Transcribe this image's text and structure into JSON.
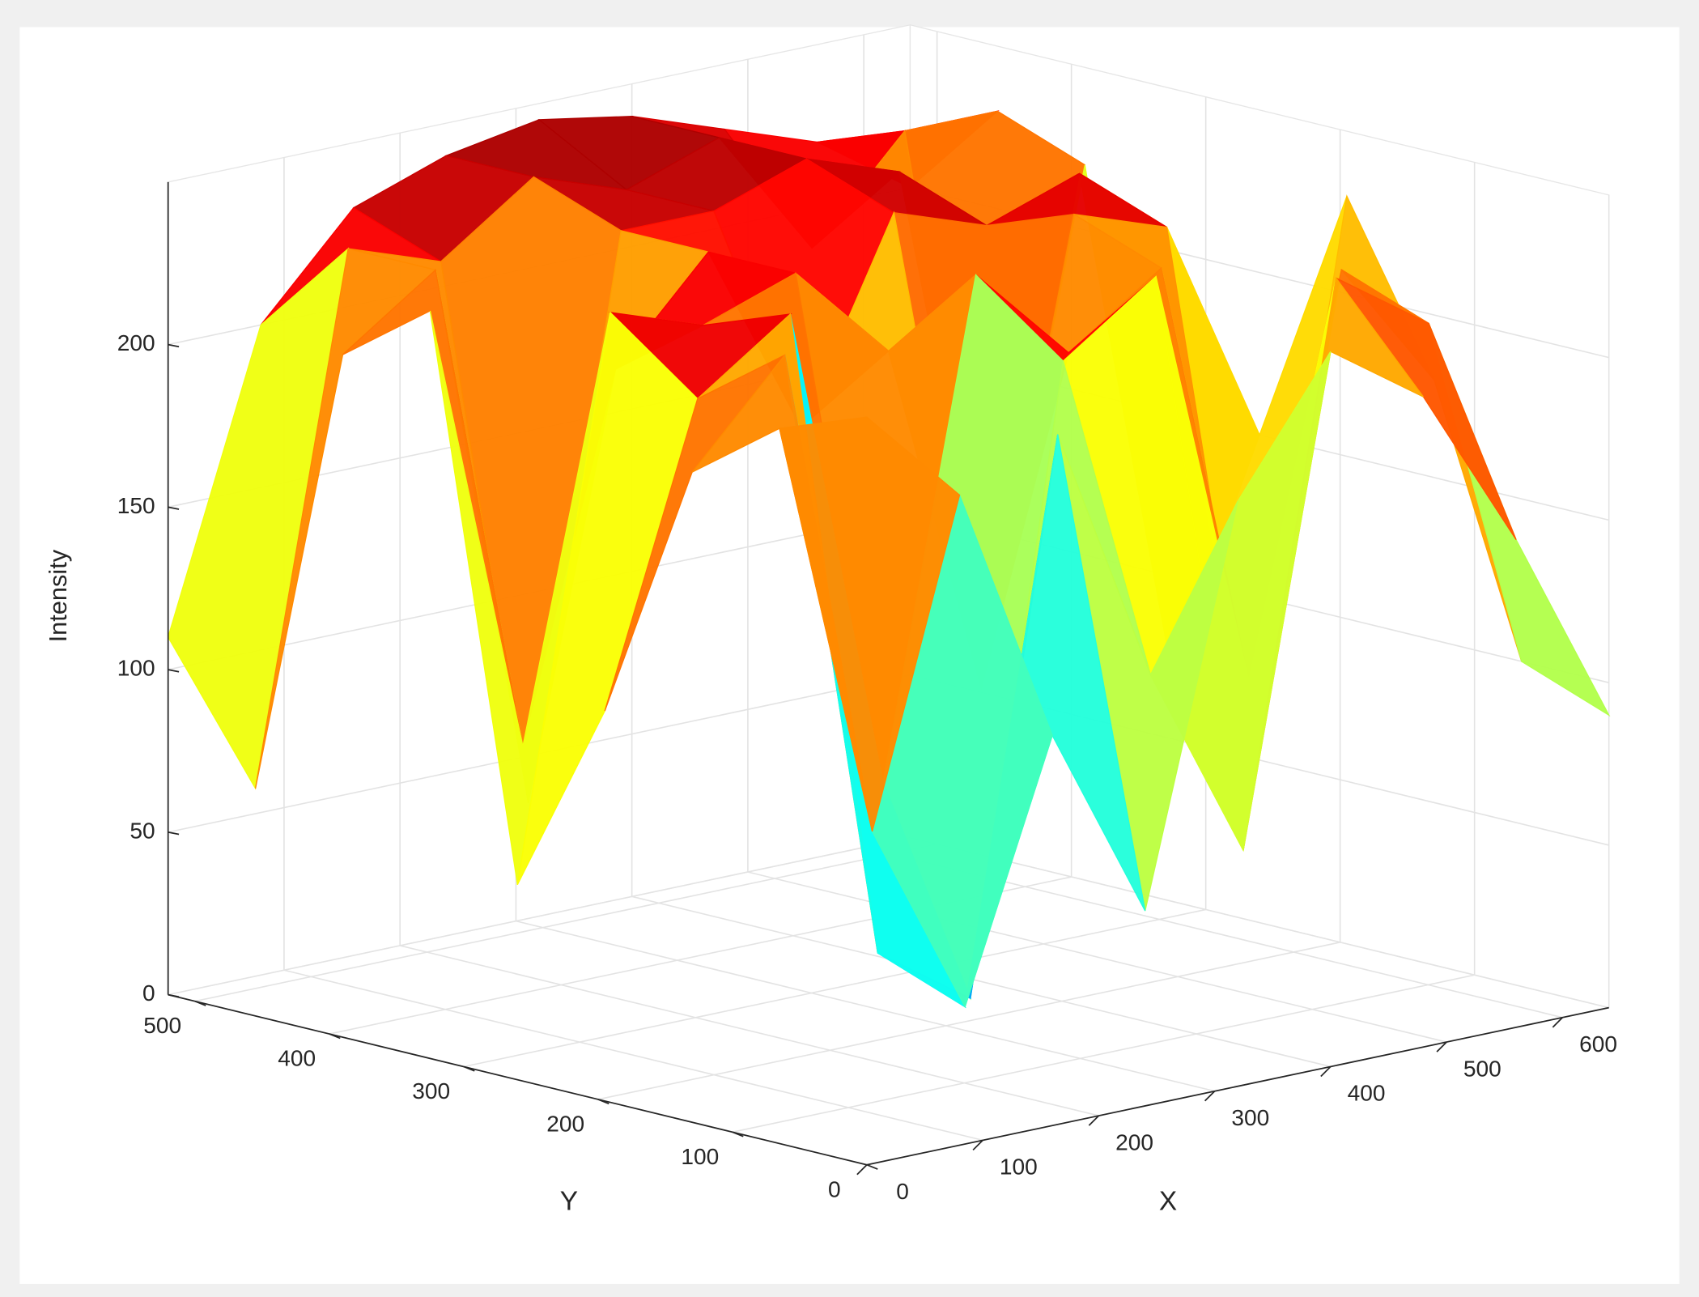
{
  "chart_data": {
    "type": "surface",
    "colormap": "jet",
    "grid": true,
    "xlabel": "X",
    "ylabel": "Y",
    "zlabel": "Intensity",
    "x": [
      0,
      80,
      160,
      240,
      320,
      400,
      480,
      560,
      640
    ],
    "y": [
      0,
      65,
      130,
      195,
      260,
      325,
      390,
      455,
      520
    ],
    "z": [
      [
        230,
        200,
        120,
        60,
        180,
        220,
        200,
        150,
        90
      ],
      [
        220,
        90,
        30,
        200,
        120,
        60,
        230,
        210,
        100
      ],
      [
        200,
        230,
        40,
        20,
        210,
        230,
        100,
        220,
        180
      ],
      [
        120,
        210,
        230,
        80,
        230,
        200,
        220,
        60,
        230
      ],
      [
        60,
        230,
        220,
        230,
        200,
        90,
        230,
        220,
        150
      ],
      [
        230,
        90,
        200,
        230,
        170,
        230,
        220,
        230,
        70
      ],
      [
        210,
        230,
        60,
        230,
        230,
        240,
        230,
        80,
        220
      ],
      [
        70,
        230,
        220,
        240,
        230,
        240,
        200,
        230,
        230
      ],
      [
        110,
        200,
        230,
        240,
        245,
        240,
        230,
        220,
        200
      ]
    ],
    "xlim": [
      0,
      640
    ],
    "ylim": [
      0,
      520
    ],
    "zlim": [
      0,
      250
    ],
    "xticks": [
      0,
      100,
      200,
      300,
      400,
      500,
      600
    ],
    "yticks": [
      0,
      100,
      200,
      300,
      400,
      500
    ],
    "zticks": [
      0,
      50,
      100,
      150,
      200
    ]
  }
}
